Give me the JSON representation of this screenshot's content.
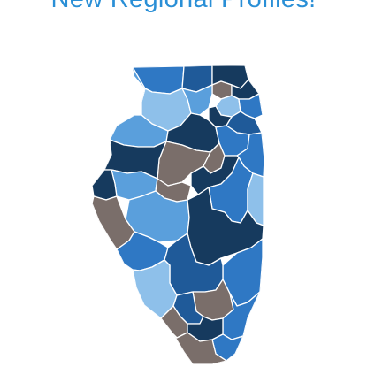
{
  "header": {
    "title": "New Regional Profiles!"
  },
  "colors": {
    "title": "#2a8fd6",
    "background": "#ffffff",
    "navy": "#163a5e",
    "blue_dark": "#1f5a99",
    "blue_mid": "#2f78c4",
    "blue_light": "#5a9fdc",
    "blue_pale": "#8ec0ea",
    "gray": "#7a6e6a",
    "border": "#ffffff"
  },
  "map": {
    "subject": "illinois-regions-map",
    "regions": [
      {
        "id": "r01",
        "fill": "blue_mid"
      },
      {
        "id": "r02",
        "fill": "blue_dark"
      },
      {
        "id": "r03",
        "fill": "navy"
      },
      {
        "id": "r04",
        "fill": "blue_pale"
      },
      {
        "id": "r05",
        "fill": "gray"
      },
      {
        "id": "r06",
        "fill": "blue_light"
      },
      {
        "id": "r07",
        "fill": "navy"
      },
      {
        "id": "r08",
        "fill": "blue_pale"
      },
      {
        "id": "r09",
        "fill": "navy"
      },
      {
        "id": "r10",
        "fill": "blue_mid"
      },
      {
        "id": "r11",
        "fill": "blue_dark"
      },
      {
        "id": "r12",
        "fill": "blue_light"
      },
      {
        "id": "r13",
        "fill": "navy"
      },
      {
        "id": "r14",
        "fill": "blue_mid"
      },
      {
        "id": "r15",
        "fill": "gray"
      },
      {
        "id": "r16",
        "fill": "navy"
      },
      {
        "id": "r17",
        "fill": "blue_mid"
      },
      {
        "id": "r18",
        "fill": "gray"
      },
      {
        "id": "r19",
        "fill": "navy"
      },
      {
        "id": "r20",
        "fill": "blue_light"
      },
      {
        "id": "r21",
        "fill": "navy"
      },
      {
        "id": "r22",
        "fill": "blue_mid"
      },
      {
        "id": "r23",
        "fill": "blue_pale"
      },
      {
        "id": "r24",
        "fill": "gray"
      },
      {
        "id": "r25",
        "fill": "blue_light"
      },
      {
        "id": "r26",
        "fill": "gray"
      },
      {
        "id": "r27",
        "fill": "navy"
      },
      {
        "id": "r28",
        "fill": "blue_mid"
      },
      {
        "id": "r29",
        "fill": "blue_mid"
      },
      {
        "id": "r30",
        "fill": "blue_dark"
      },
      {
        "id": "r31",
        "fill": "blue_pale"
      },
      {
        "id": "r32",
        "fill": "gray"
      },
      {
        "id": "r33",
        "fill": "blue_dark"
      },
      {
        "id": "r34",
        "fill": "blue_mid"
      },
      {
        "id": "r35",
        "fill": "gray"
      },
      {
        "id": "r36",
        "fill": "navy"
      },
      {
        "id": "r37",
        "fill": "blue_mid"
      },
      {
        "id": "r38",
        "fill": "gray"
      },
      {
        "id": "r39",
        "fill": "blue_light"
      }
    ]
  }
}
